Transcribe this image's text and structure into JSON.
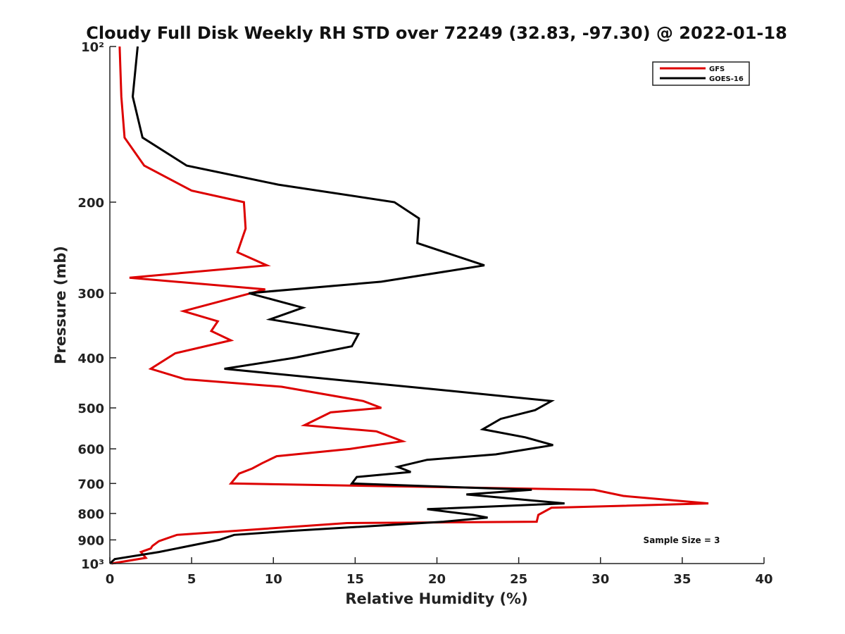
{
  "chart_data": {
    "type": "line",
    "title": "Cloudy Full Disk Weekly RH STD over 72249 (32.83, -97.30) @ 2022-01-18",
    "xlabel": "Relative Humidity (%)",
    "ylabel": "Pressure (mb)",
    "xlim": [
      0,
      40
    ],
    "ylim": [
      100,
      1000
    ],
    "y_scale": "log",
    "y_reversed": true,
    "x_ticks": [
      0,
      5,
      10,
      15,
      20,
      25,
      30,
      35,
      40
    ],
    "y_ticks": [
      100,
      200,
      300,
      400,
      500,
      600,
      700,
      800,
      900,
      1000
    ],
    "y_tick_labels": [
      "10²",
      "200",
      "300",
      "400",
      "500",
      "600",
      "700",
      "800",
      "900",
      "10³"
    ],
    "grid": false,
    "legend_position": "top-right",
    "annotation": "Sample Size = 3",
    "series": [
      {
        "name": "GFS",
        "color": "#dd0000",
        "points": [
          [
            0.6,
            100
          ],
          [
            0.7,
            125
          ],
          [
            0.9,
            150
          ],
          [
            2.1,
            170
          ],
          [
            5.0,
            190
          ],
          [
            8.2,
            200
          ],
          [
            8.3,
            225
          ],
          [
            7.8,
            250
          ],
          [
            9.6,
            265
          ],
          [
            1.2,
            280
          ],
          [
            9.5,
            295
          ],
          [
            4.5,
            325
          ],
          [
            6.6,
            340
          ],
          [
            6.2,
            355
          ],
          [
            7.4,
            370
          ],
          [
            4.0,
            392
          ],
          [
            2.5,
            420
          ],
          [
            4.6,
            440
          ],
          [
            10.5,
            455
          ],
          [
            15.5,
            485
          ],
          [
            16.6,
            500
          ],
          [
            13.5,
            510
          ],
          [
            11.9,
            540
          ],
          [
            16.3,
            555
          ],
          [
            17.9,
            580
          ],
          [
            14.7,
            600
          ],
          [
            10.2,
            620
          ],
          [
            9.3,
            640
          ],
          [
            8.7,
            655
          ],
          [
            7.9,
            670
          ],
          [
            7.4,
            700
          ],
          [
            29.6,
            720
          ],
          [
            31.4,
            740
          ],
          [
            36.6,
            765
          ],
          [
            27.0,
            780
          ],
          [
            26.2,
            805
          ],
          [
            26.1,
            830
          ],
          [
            14.5,
            835
          ],
          [
            4.1,
            880
          ],
          [
            3.0,
            905
          ],
          [
            2.6,
            925
          ],
          [
            2.5,
            935
          ],
          [
            1.9,
            950
          ],
          [
            2.2,
            975
          ],
          [
            0.1,
            1000
          ]
        ]
      },
      {
        "name": "GOES-16",
        "color": "#000000",
        "points": [
          [
            1.7,
            100
          ],
          [
            1.4,
            125
          ],
          [
            2.0,
            150
          ],
          [
            4.7,
            170
          ],
          [
            10.3,
            185
          ],
          [
            17.4,
            200
          ],
          [
            18.9,
            215
          ],
          [
            18.8,
            240
          ],
          [
            22.9,
            265
          ],
          [
            16.6,
            285
          ],
          [
            8.5,
            300
          ],
          [
            11.8,
            320
          ],
          [
            9.8,
            337
          ],
          [
            15.2,
            360
          ],
          [
            14.8,
            380
          ],
          [
            11.3,
            400
          ],
          [
            7.0,
            420
          ],
          [
            19.8,
            460
          ],
          [
            27.0,
            485
          ],
          [
            26.0,
            505
          ],
          [
            23.9,
            525
          ],
          [
            22.8,
            550
          ],
          [
            25.4,
            570
          ],
          [
            27.1,
            590
          ],
          [
            23.6,
            615
          ],
          [
            19.4,
            630
          ],
          [
            17.6,
            650
          ],
          [
            18.4,
            665
          ],
          [
            15.1,
            680
          ],
          [
            14.8,
            700
          ],
          [
            25.8,
            720
          ],
          [
            21.8,
            735
          ],
          [
            27.8,
            765
          ],
          [
            19.4,
            785
          ],
          [
            22.2,
            805
          ],
          [
            23.1,
            815
          ],
          [
            20.4,
            830
          ],
          [
            11.0,
            865
          ],
          [
            7.6,
            880
          ],
          [
            6.7,
            900
          ],
          [
            3.0,
            950
          ],
          [
            0.3,
            980
          ],
          [
            0.0,
            1000
          ]
        ]
      }
    ]
  }
}
